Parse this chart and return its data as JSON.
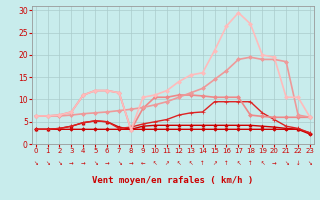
{
  "x": [
    0,
    1,
    2,
    3,
    4,
    5,
    6,
    7,
    8,
    9,
    10,
    11,
    12,
    13,
    14,
    15,
    16,
    17,
    18,
    19,
    20,
    21,
    22,
    23
  ],
  "series": [
    {
      "name": "flat_dark_red",
      "color": "#cc0000",
      "linewidth": 1.0,
      "marker": "D",
      "markersize": 1.8,
      "y": [
        3.3,
        3.3,
        3.3,
        3.3,
        3.3,
        3.3,
        3.3,
        3.3,
        3.3,
        3.3,
        3.3,
        3.3,
        3.3,
        3.3,
        3.3,
        3.3,
        3.3,
        3.3,
        3.3,
        3.3,
        3.3,
        3.3,
        3.3,
        2.2
      ]
    },
    {
      "name": "triangle_dark_red",
      "color": "#cc0000",
      "linewidth": 1.0,
      "marker": "^",
      "markersize": 2.2,
      "y": [
        3.3,
        3.3,
        3.5,
        4.0,
        4.8,
        5.2,
        5.0,
        3.8,
        3.3,
        4.0,
        4.2,
        4.2,
        4.2,
        4.2,
        4.2,
        4.2,
        4.2,
        4.2,
        4.2,
        4.0,
        3.8,
        3.5,
        3.3,
        2.5
      ]
    },
    {
      "name": "plus_medium_red",
      "color": "#dd2222",
      "linewidth": 1.0,
      "marker": "+",
      "markersize": 3.0,
      "y": [
        3.3,
        3.3,
        3.5,
        4.0,
        4.8,
        5.2,
        5.0,
        3.5,
        3.8,
        4.5,
        5.0,
        5.5,
        6.5,
        7.0,
        7.2,
        9.5,
        9.5,
        9.5,
        9.5,
        7.0,
        5.5,
        4.0,
        3.5,
        2.5
      ]
    },
    {
      "name": "early_peak_pink",
      "color": "#ee8888",
      "linewidth": 1.2,
      "marker": "D",
      "markersize": 2.0,
      "y": [
        6.3,
        6.3,
        6.5,
        7.2,
        11.0,
        12.0,
        12.0,
        11.5,
        3.2,
        8.0,
        10.5,
        10.5,
        11.0,
        11.0,
        10.8,
        10.5,
        10.5,
        10.5,
        6.5,
        6.2,
        6.0,
        6.0,
        6.0,
        6.0
      ]
    },
    {
      "name": "linear_light_red",
      "color": "#ee9999",
      "linewidth": 1.2,
      "marker": "D",
      "markersize": 2.0,
      "y": [
        6.3,
        6.3,
        6.3,
        6.5,
        6.8,
        7.0,
        7.2,
        7.5,
        7.8,
        8.2,
        8.8,
        9.5,
        10.5,
        11.5,
        12.5,
        14.5,
        16.5,
        19.0,
        19.5,
        19.0,
        19.0,
        18.5,
        6.5,
        6.0
      ]
    },
    {
      "name": "peaky_lightest_pink",
      "color": "#ffbbbb",
      "linewidth": 1.2,
      "marker": "D",
      "markersize": 2.0,
      "y": [
        6.3,
        6.3,
        6.5,
        7.2,
        11.0,
        12.0,
        12.0,
        11.5,
        3.2,
        10.5,
        11.0,
        12.0,
        14.0,
        15.5,
        16.0,
        21.0,
        26.5,
        29.5,
        27.0,
        20.0,
        19.5,
        10.5,
        10.5,
        6.0
      ]
    }
  ],
  "xlabel": "Vent moyen/en rafales ( km/h )",
  "xlim": [
    -0.3,
    23.3
  ],
  "ylim": [
    0,
    31
  ],
  "yticks": [
    0,
    5,
    10,
    15,
    20,
    25,
    30
  ],
  "xticks": [
    0,
    1,
    2,
    3,
    4,
    5,
    6,
    7,
    8,
    9,
    10,
    11,
    12,
    13,
    14,
    15,
    16,
    17,
    18,
    19,
    20,
    21,
    22,
    23
  ],
  "background_color": "#c8ecec",
  "grid_color": "#aacccc",
  "xlabel_color": "#cc0000",
  "tick_color": "#cc0000",
  "arrow_symbols": [
    "↘",
    "↘",
    "↘",
    "→",
    "→",
    "↘",
    "→",
    "↘",
    "→",
    "←",
    "↖",
    "↗",
    "↖",
    "↖",
    "↑",
    "↗",
    "↑",
    "↖",
    "↑",
    "↖",
    "→",
    "↘",
    "↓",
    "↘"
  ]
}
